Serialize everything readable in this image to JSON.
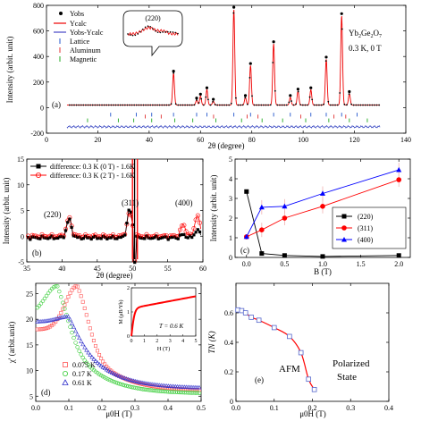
{
  "chart_data": [
    {
      "panel": "(a)",
      "type": "line",
      "xlabel": "2θ (degree)",
      "ylabel": "Intensity (arbit. unit)",
      "xlim": [
        0,
        140
      ],
      "ylim": [
        -200,
        800
      ],
      "xticks": [
        0,
        20,
        40,
        60,
        80,
        100,
        120,
        140
      ],
      "yticks": [
        -200,
        0,
        200,
        400,
        600,
        800
      ],
      "legend": [
        "Yobs",
        "Ycalc",
        "Yobs-Ycalc",
        "Lattice",
        "Aluminum",
        "Magnetic"
      ],
      "annotation": "Yb2Ge2O7",
      "annotation2": "0.3 K, 0 T",
      "inset_label": "(220)",
      "peaks": [
        {
          "x": 49.5,
          "y": 270
        },
        {
          "x": 58.5,
          "y": 60
        },
        {
          "x": 60.0,
          "y": 90
        },
        {
          "x": 62.5,
          "y": 140
        },
        {
          "x": 65.0,
          "y": 50
        },
        {
          "x": 73.0,
          "y": 770
        },
        {
          "x": 77.5,
          "y": 80
        },
        {
          "x": 79.5,
          "y": 330
        },
        {
          "x": 88.5,
          "y": 500
        },
        {
          "x": 95.0,
          "y": 80
        },
        {
          "x": 98.0,
          "y": 130
        },
        {
          "x": 103.0,
          "y": 140
        },
        {
          "x": 109.0,
          "y": 380
        },
        {
          "x": 115.0,
          "y": 720
        },
        {
          "x": 118.0,
          "y": 110
        }
      ],
      "background": 20,
      "diff_offset": -150,
      "lattice_ticks": [
        25,
        35,
        41,
        49.5,
        58.5,
        62.5,
        73,
        79.5,
        88.5,
        95,
        103,
        109,
        115,
        121
      ],
      "aluminum_ticks": [
        38.5,
        44.7,
        65.1,
        78.2,
        82.4,
        99.1,
        112.0,
        116.6
      ],
      "magnetic_ticks": [
        16,
        28,
        34,
        41,
        50,
        57,
        66,
        76,
        84,
        92,
        101,
        110,
        118,
        125
      ]
    },
    {
      "panel": "(b)",
      "type": "line",
      "xlabel": "2θ (degree)",
      "ylabel": "Intensity (arbit. unit)",
      "xlim": [
        35,
        60
      ],
      "ylim": [
        -5,
        15
      ],
      "xticks": [
        35,
        40,
        45,
        50,
        55,
        60
      ],
      "yticks": [
        -5,
        0,
        5,
        10,
        15
      ],
      "series": [
        {
          "name": "difference: 0.3 K (0 T) - 1.6K",
          "color": "#000000",
          "marker": "square"
        },
        {
          "name": "difference: 0.3 K (2 T) - 1.6K",
          "color": "#ff0000",
          "marker": "circle"
        }
      ],
      "features": [
        {
          "x": 41.0,
          "amp0": 3.5,
          "amp2": 3.5
        },
        {
          "x": 49.6,
          "amp0": 5.5,
          "amp2": 4.5
        },
        {
          "x": 57.2,
          "amp0": 0.6,
          "amp2": 2.2
        },
        {
          "x": 59.2,
          "amp0": 1.5,
          "amp2": 4.0
        }
      ],
      "labels": [
        "(220)",
        "(311)",
        "(400)"
      ]
    },
    {
      "panel": "(c)",
      "type": "line",
      "xlabel": "B (T)",
      "ylabel": "Intensity (arbit. unit)",
      "xlim": [
        -0.15,
        2.15
      ],
      "ylim": [
        0,
        5
      ],
      "xticks": [
        0.0,
        0.5,
        1.0,
        1.5,
        2.0
      ],
      "yticks": [
        0,
        1,
        2,
        3,
        4,
        5
      ],
      "series": [
        {
          "name": "(220)",
          "color": "#000000",
          "marker": "square",
          "x": [
            0,
            0.2,
            0.5,
            1.0,
            2.0
          ],
          "y": [
            3.35,
            0.2,
            0.1,
            0.05,
            0.1
          ]
        },
        {
          "name": "(311)",
          "color": "#ff0000",
          "marker": "circle",
          "x": [
            0,
            0.2,
            0.5,
            1.0,
            2.0
          ],
          "y": [
            1.05,
            1.4,
            2.0,
            2.6,
            3.95
          ]
        },
        {
          "name": "(400)",
          "color": "#0000ff",
          "marker": "triangle",
          "x": [
            0,
            0.2,
            0.5,
            1.0,
            2.0
          ],
          "y": [
            1.05,
            2.55,
            2.6,
            3.25,
            4.45
          ]
        }
      ],
      "legend_position": "bottom-right"
    },
    {
      "panel": "(d)",
      "type": "scatter",
      "xlabel": "μ0H (T)",
      "ylabel": "χ' (arbit.unit)",
      "xlim": [
        0,
        0.5
      ],
      "ylim": [
        4,
        27
      ],
      "xticks": [
        0.0,
        0.1,
        0.2,
        0.3,
        0.4,
        0.5
      ],
      "yticks": [
        5,
        10,
        15,
        20,
        25
      ],
      "series": [
        {
          "name": "0.075 K",
          "color": "#ff5555",
          "marker": "square",
          "peak_x": 0.125,
          "peak_y": 26.5,
          "base": 18.0,
          "tail": 6.0
        },
        {
          "name": "0.17 K",
          "color": "#33cc33",
          "marker": "circle",
          "peak_x": 0.065,
          "peak_y": 26.5,
          "base": 21.0,
          "tail": 5.5
        },
        {
          "name": "0.61 K",
          "color": "#3333cc",
          "marker": "triangle",
          "peak_x": 0.1,
          "peak_y": 20.5,
          "base": 19.5,
          "tail": 6.5
        }
      ],
      "inset": {
        "xlabel": "H (T)",
        "ylabel": "M (μB/Yb)",
        "xlim": [
          0,
          5
        ],
        "ylim": [
          0,
          2
        ],
        "xticks": [
          0,
          1,
          2,
          3,
          4,
          5
        ],
        "yticks": [
          0,
          1,
          2
        ],
        "annotation": "T = 0.6 K",
        "curve_color": "#ff0000"
      }
    },
    {
      "panel": "(e)",
      "type": "line",
      "xlabel": "μ0H (T)",
      "ylabel": "TN (K)",
      "xlim": [
        0,
        0.4
      ],
      "ylim": [
        0,
        0.8
      ],
      "xticks": [
        0.0,
        0.1,
        0.2,
        0.3,
        0.4
      ],
      "yticks": [
        0.0,
        0.2,
        0.4,
        0.6
      ],
      "series": [
        {
          "name": "TN",
          "color": "#ff0000",
          "marker": "square",
          "marker_color": "#5566cc",
          "x": [
            0.005,
            0.015,
            0.025,
            0.04,
            0.06,
            0.1,
            0.14,
            0.17,
            0.19,
            0.205
          ],
          "y": [
            0.62,
            0.615,
            0.6,
            0.57,
            0.55,
            0.5,
            0.44,
            0.33,
            0.15,
            0.08
          ]
        }
      ],
      "annotations": [
        "AFM",
        "Polarized",
        "State"
      ]
    }
  ]
}
